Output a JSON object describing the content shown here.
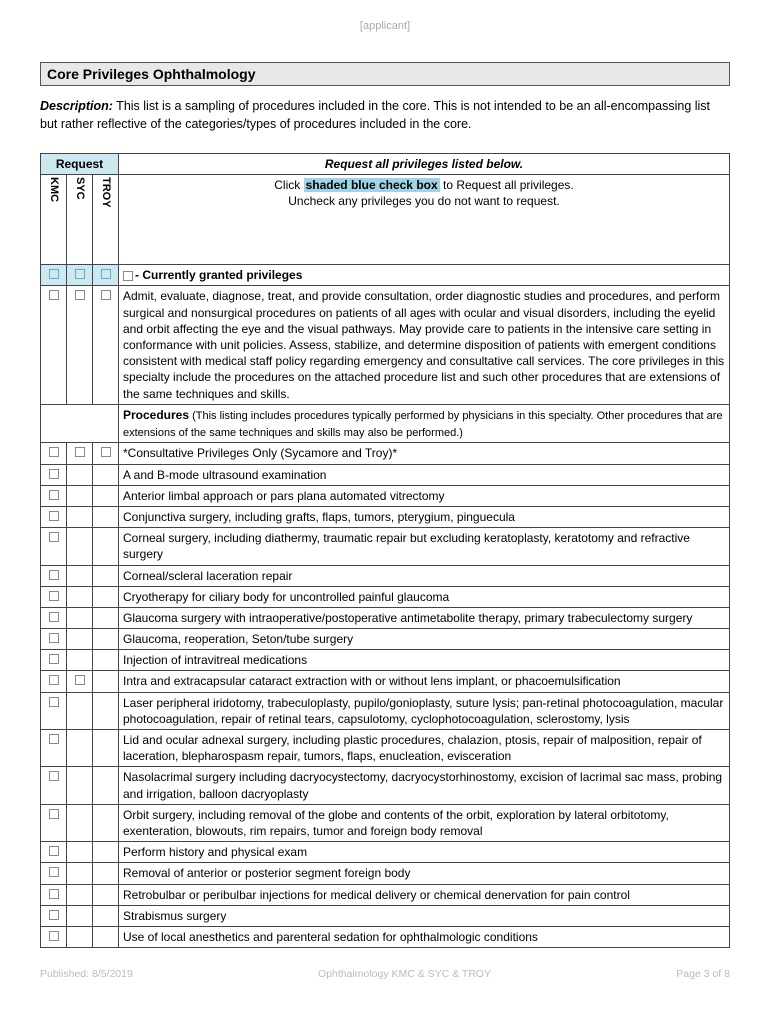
{
  "header": {
    "applicant": "[applicant]"
  },
  "title": "Core Privileges Ophthalmology",
  "description": {
    "label": "Description:",
    "text": " This list is a sampling of procedures included in the core. This is not intended to be an all-encompassing list but rather reflective of the categories/types of procedures included in the core."
  },
  "table": {
    "request_hdr": "Request",
    "request_all_hdr": "Request all privileges listed below.",
    "cols": [
      "KMC",
      "SYC",
      "TROY"
    ],
    "instruction_pre": "Click ",
    "instruction_shaded": "shaded blue check box",
    "instruction_post": " to Request all privileges.",
    "instruction_line2": "Uncheck any privileges you do not want to request.",
    "granted_label": "- Currently granted privileges",
    "core_text": "Admit, evaluate, diagnose, treat, and provide consultation, order diagnostic studies and procedures, and perform surgical and nonsurgical procedures on patients of all ages with ocular and visual disorders, including the eyelid and orbit affecting the eye and the visual pathways. May provide care to patients in the intensive care setting in conformance with unit policies. Assess, stabilize, and determine disposition of patients with emergent conditions consistent with medical staff policy regarding emergency and consultative call services. The core privileges in this specialty include the procedures on the attached procedure list and such other procedures that are extensions of the same techniques and skills.",
    "procedures_label": "Procedures",
    "procedures_note": " (This listing includes procedures typically performed by physicians in this specialty. Other procedures that are extensions of the same techniques and skills may also be performed.)",
    "rows": [
      {
        "c": [
          true,
          true,
          true
        ],
        "t": "*Consultative Privileges Only (Sycamore and Troy)*"
      },
      {
        "c": [
          true,
          false,
          false
        ],
        "t": "A and B-mode ultrasound examination"
      },
      {
        "c": [
          true,
          false,
          false
        ],
        "t": "Anterior limbal approach or pars plana automated vitrectomy"
      },
      {
        "c": [
          true,
          false,
          false
        ],
        "t": "Conjunctiva surgery, including grafts, flaps, tumors, pterygium, pinguecula"
      },
      {
        "c": [
          true,
          false,
          false
        ],
        "t": "Corneal surgery, including diathermy, traumatic repair but excluding keratoplasty, keratotomy and refractive surgery"
      },
      {
        "c": [
          true,
          false,
          false
        ],
        "t": "Corneal/scleral laceration repair"
      },
      {
        "c": [
          true,
          false,
          false
        ],
        "t": "Cryotherapy for ciliary body for uncontrolled painful glaucoma"
      },
      {
        "c": [
          true,
          false,
          false
        ],
        "t": "Glaucoma surgery with intraoperative/postoperative antimetabolite therapy, primary trabeculectomy surgery"
      },
      {
        "c": [
          true,
          false,
          false
        ],
        "t": "Glaucoma, reoperation, Seton/tube surgery"
      },
      {
        "c": [
          true,
          false,
          false
        ],
        "t": "Injection of intravitreal medications"
      },
      {
        "c": [
          true,
          true,
          false
        ],
        "t": "Intra and extracapsular cataract extraction with or without lens implant, or phacoemulsification"
      },
      {
        "c": [
          true,
          false,
          false
        ],
        "t": "Laser peripheral iridotomy, trabeculoplasty, pupilo/gonioplasty, suture lysis; pan-retinal photocoagulation, macular photocoagulation, repair of retinal tears, capsulotomy, cyclophotocoagulation, sclerostomy, lysis"
      },
      {
        "c": [
          true,
          false,
          false
        ],
        "t": "Lid and ocular adnexal surgery, including plastic procedures, chalazion, ptosis, repair of malposition, repair of laceration, blepharospasm repair, tumors, flaps, enucleation, evisceration"
      },
      {
        "c": [
          true,
          false,
          false
        ],
        "t": "Nasolacrimal surgery including dacryocystectomy, dacryocystorhinostomy, excision of lacrimal sac mass, probing and irrigation, balloon dacryoplasty"
      },
      {
        "c": [
          true,
          false,
          false
        ],
        "t": "Orbit surgery, including removal of the globe and contents of the orbit, exploration by lateral orbitotomy, exenteration, blowouts, rim repairs, tumor and foreign body removal"
      },
      {
        "c": [
          true,
          false,
          false
        ],
        "t": "Perform history and physical exam"
      },
      {
        "c": [
          true,
          false,
          false
        ],
        "t": "Removal of anterior or posterior segment foreign body"
      },
      {
        "c": [
          true,
          false,
          false
        ],
        "t": "Retrobulbar or peribulbar injections for medical delivery or chemical denervation for pain control"
      },
      {
        "c": [
          true,
          false,
          false
        ],
        "t": "Strabismus surgery"
      },
      {
        "c": [
          true,
          false,
          false
        ],
        "t": "Use of local anesthetics and parenteral sedation for ophthalmologic conditions"
      }
    ]
  },
  "footer": {
    "published": "Published: 8/5/2019",
    "center": "Ophthalmology KMC & SYC & TROY",
    "page": "Page 3 of 8"
  }
}
